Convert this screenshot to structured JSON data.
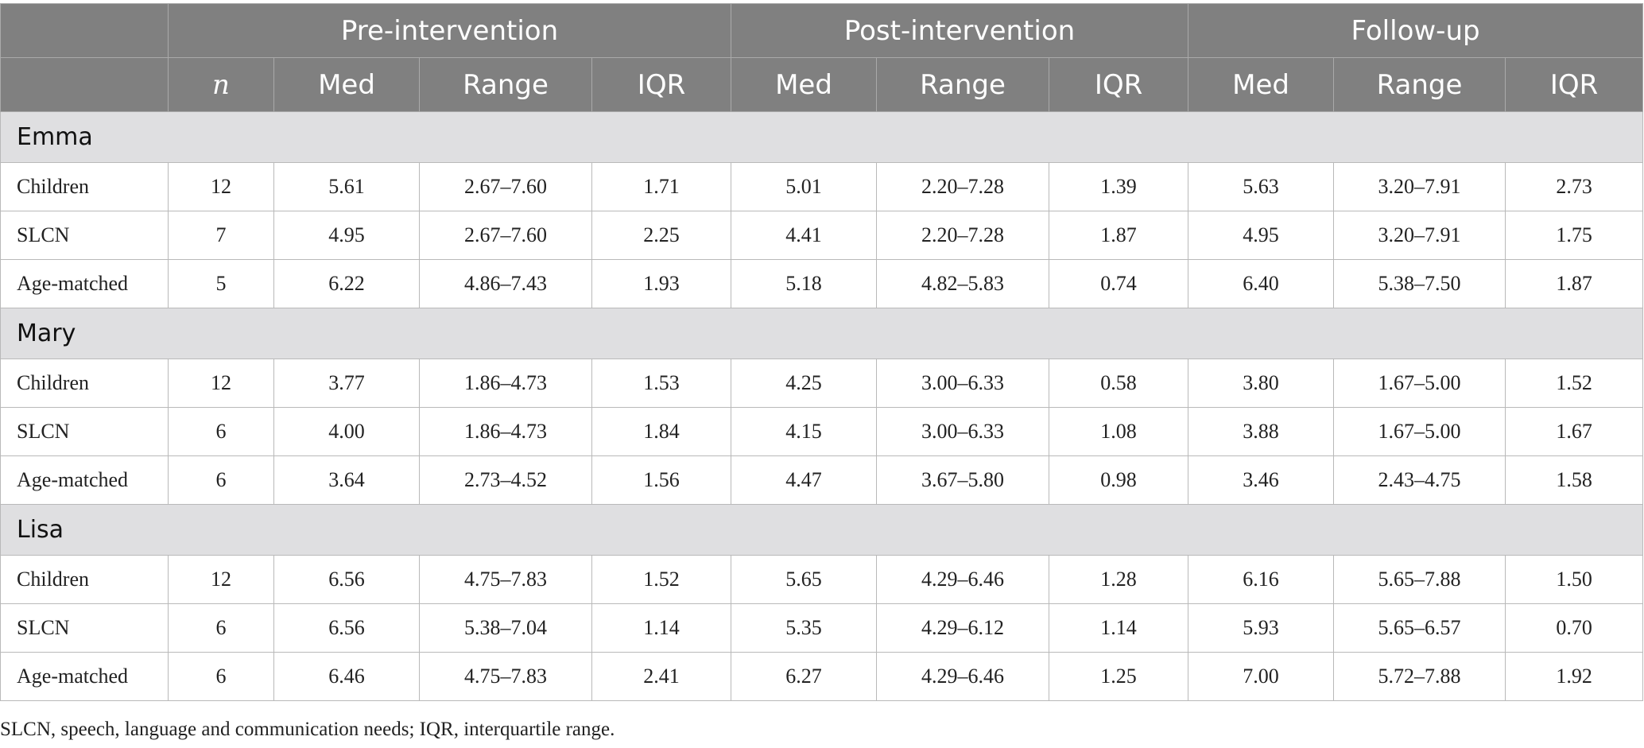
{
  "header": {
    "groups": [
      "Pre-intervention",
      "Post-intervention",
      "Follow-up"
    ],
    "n_label": "n",
    "sub": [
      "Med",
      "Range",
      "IQR"
    ]
  },
  "sections": [
    {
      "name": "Emma",
      "rows": [
        {
          "label": "Children",
          "n": "12",
          "pre": [
            "5.61",
            "2.67–7.60",
            "1.71"
          ],
          "post": [
            "5.01",
            "2.20–7.28",
            "1.39"
          ],
          "fu": [
            "5.63",
            "3.20–7.91",
            "2.73"
          ]
        },
        {
          "label": "SLCN",
          "n": "7",
          "pre": [
            "4.95",
            "2.67–7.60",
            "2.25"
          ],
          "post": [
            "4.41",
            "2.20–7.28",
            "1.87"
          ],
          "fu": [
            "4.95",
            "3.20–7.91",
            "1.75"
          ]
        },
        {
          "label": "Age-matched",
          "n": "5",
          "pre": [
            "6.22",
            "4.86–7.43",
            "1.93"
          ],
          "post": [
            "5.18",
            "4.82–5.83",
            "0.74"
          ],
          "fu": [
            "6.40",
            "5.38–7.50",
            "1.87"
          ]
        }
      ]
    },
    {
      "name": "Mary",
      "rows": [
        {
          "label": "Children",
          "n": "12",
          "pre": [
            "3.77",
            "1.86–4.73",
            "1.53"
          ],
          "post": [
            "4.25",
            "3.00–6.33",
            "0.58"
          ],
          "fu": [
            "3.80",
            "1.67–5.00",
            "1.52"
          ]
        },
        {
          "label": "SLCN",
          "n": "6",
          "pre": [
            "4.00",
            "1.86–4.73",
            "1.84"
          ],
          "post": [
            "4.15",
            "3.00–6.33",
            "1.08"
          ],
          "fu": [
            "3.88",
            "1.67–5.00",
            "1.67"
          ]
        },
        {
          "label": "Age-matched",
          "n": "6",
          "pre": [
            "3.64",
            "2.73–4.52",
            "1.56"
          ],
          "post": [
            "4.47",
            "3.67–5.80",
            "0.98"
          ],
          "fu": [
            "3.46",
            "2.43–4.75",
            "1.58"
          ]
        }
      ]
    },
    {
      "name": "Lisa",
      "rows": [
        {
          "label": "Children",
          "n": "12",
          "pre": [
            "6.56",
            "4.75–7.83",
            "1.52"
          ],
          "post": [
            "5.65",
            "4.29–6.46",
            "1.28"
          ],
          "fu": [
            "6.16",
            "5.65–7.88",
            "1.50"
          ]
        },
        {
          "label": "SLCN",
          "n": "6",
          "pre": [
            "6.56",
            "5.38–7.04",
            "1.14"
          ],
          "post": [
            "5.35",
            "4.29–6.12",
            "1.14"
          ],
          "fu": [
            "5.93",
            "5.65–6.57",
            "0.70"
          ]
        },
        {
          "label": "Age-matched",
          "n": "6",
          "pre": [
            "6.46",
            "4.75–7.83",
            "2.41"
          ],
          "post": [
            "6.27",
            "4.29–6.46",
            "1.25"
          ],
          "fu": [
            "7.00",
            "5.72–7.88",
            "1.92"
          ]
        }
      ]
    }
  ],
  "footnote": "SLCN, speech, language and communication needs; IQR, interquartile range."
}
